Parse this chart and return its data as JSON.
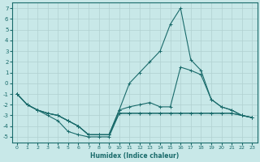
{
  "xlabel": "Humidex (Indice chaleur)",
  "bg_color": "#c8e8e8",
  "line_color": "#1a6b6b",
  "grid_color": "#b0d0d0",
  "xlim": [
    -0.5,
    23.5
  ],
  "ylim": [
    -5.5,
    7.5
  ],
  "xticks": [
    0,
    1,
    2,
    3,
    4,
    5,
    6,
    7,
    8,
    9,
    10,
    11,
    12,
    13,
    14,
    15,
    16,
    17,
    18,
    19,
    20,
    21,
    22,
    23
  ],
  "yticks": [
    -5,
    -4,
    -3,
    -2,
    -1,
    0,
    1,
    2,
    3,
    4,
    5,
    6,
    7
  ],
  "series": [
    {
      "x": [
        0,
        1,
        2,
        3,
        4,
        5,
        6,
        7,
        8,
        9,
        10,
        11,
        12,
        13,
        14,
        15,
        16,
        17,
        18,
        19,
        20,
        21,
        22,
        23
      ],
      "y": [
        -1,
        -2,
        -2.5,
        -2.8,
        -3,
        -3.5,
        -4,
        -4.8,
        -4.8,
        -4.8,
        -2.5,
        0,
        1,
        2,
        3,
        5.5,
        7,
        2.2,
        1.2,
        -1.5,
        -2.2,
        -2.5,
        -3,
        -3.2
      ]
    },
    {
      "x": [
        0,
        1,
        2,
        3,
        4,
        5,
        6,
        7,
        8,
        9,
        10,
        11,
        12,
        13,
        14,
        15,
        16,
        17,
        18,
        19,
        20,
        21,
        22,
        23
      ],
      "y": [
        -1,
        -2,
        -2.5,
        -2.8,
        -3,
        -3.5,
        -4,
        -4.8,
        -4.8,
        -4.8,
        -2.5,
        -2.2,
        -2,
        -1.8,
        -2.2,
        -2.2,
        1.5,
        1.2,
        0.8,
        -1.5,
        -2.2,
        -2.5,
        -3,
        -3.2
      ]
    },
    {
      "x": [
        0,
        1,
        2,
        3,
        4,
        5,
        6,
        7,
        8,
        9,
        10,
        11,
        12,
        13,
        14,
        15,
        16,
        17,
        18,
        19,
        20,
        21,
        22,
        23
      ],
      "y": [
        -1,
        -2,
        -2.5,
        -2.8,
        -3,
        -3.5,
        -4,
        -4.8,
        -4.8,
        -4.8,
        -2.8,
        -2.8,
        -2.8,
        -2.8,
        -2.8,
        -2.8,
        -2.8,
        -2.8,
        -2.8,
        -2.8,
        -2.8,
        -2.8,
        -3.0,
        -3.2
      ]
    },
    {
      "x": [
        0,
        1,
        2,
        3,
        4,
        5,
        6,
        7,
        8,
        9,
        10,
        11,
        12,
        13,
        14,
        15,
        16,
        17,
        18,
        19,
        20,
        21,
        22,
        23
      ],
      "y": [
        -1,
        -2,
        -2.5,
        -3,
        -3.5,
        -4.5,
        -4.8,
        -5,
        -5,
        -5,
        -2.8,
        -2.8,
        -2.8,
        -2.8,
        -2.8,
        -2.8,
        -2.8,
        -2.8,
        -2.8,
        -2.8,
        -2.8,
        -2.8,
        -3.0,
        -3.2
      ]
    }
  ]
}
